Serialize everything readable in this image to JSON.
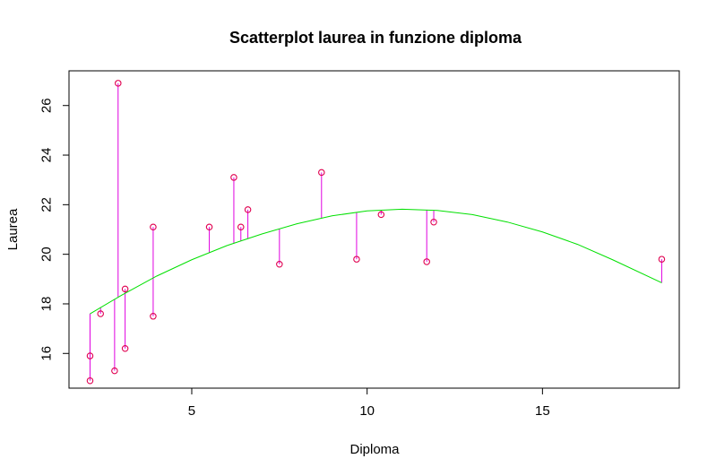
{
  "chart_data": {
    "type": "scatter",
    "title": "Scatterplot laurea in funzione diploma",
    "xlabel": "Diploma",
    "ylabel": "Laurea",
    "xlim": [
      1.5,
      18.9
    ],
    "ylim": [
      14.6,
      27.4
    ],
    "x_ticks": [
      5,
      10,
      15
    ],
    "y_ticks": [
      16,
      18,
      20,
      22,
      24,
      26
    ],
    "grid": false,
    "legend": "none",
    "colors": {
      "points": "#e0004f",
      "residuals": "#e000e0",
      "fit": "#00e000",
      "axes": "#000000"
    },
    "points": [
      {
        "x": 2.1,
        "y": 14.9
      },
      {
        "x": 2.1,
        "y": 15.9
      },
      {
        "x": 2.4,
        "y": 17.6
      },
      {
        "x": 2.8,
        "y": 15.3
      },
      {
        "x": 2.9,
        "y": 26.9
      },
      {
        "x": 3.1,
        "y": 18.6
      },
      {
        "x": 3.1,
        "y": 16.2
      },
      {
        "x": 3.9,
        "y": 21.1
      },
      {
        "x": 3.9,
        "y": 17.5
      },
      {
        "x": 5.5,
        "y": 21.1
      },
      {
        "x": 6.2,
        "y": 23.1
      },
      {
        "x": 6.4,
        "y": 21.1
      },
      {
        "x": 6.6,
        "y": 21.8
      },
      {
        "x": 7.5,
        "y": 19.6
      },
      {
        "x": 8.7,
        "y": 23.3
      },
      {
        "x": 9.7,
        "y": 19.8
      },
      {
        "x": 10.4,
        "y": 21.6
      },
      {
        "x": 11.7,
        "y": 19.7
      },
      {
        "x": 11.9,
        "y": 21.3
      },
      {
        "x": 18.4,
        "y": 19.8
      }
    ],
    "fit": {
      "name": "",
      "x": [
        2.1,
        3,
        4,
        5,
        6,
        7,
        8,
        9,
        10,
        11,
        12,
        13,
        14,
        15,
        16,
        17,
        18.4
      ],
      "y": [
        17.6,
        18.35,
        19.12,
        19.78,
        20.35,
        20.82,
        21.23,
        21.55,
        21.75,
        21.82,
        21.77,
        21.6,
        21.3,
        20.9,
        20.4,
        19.78,
        18.85
      ]
    }
  }
}
